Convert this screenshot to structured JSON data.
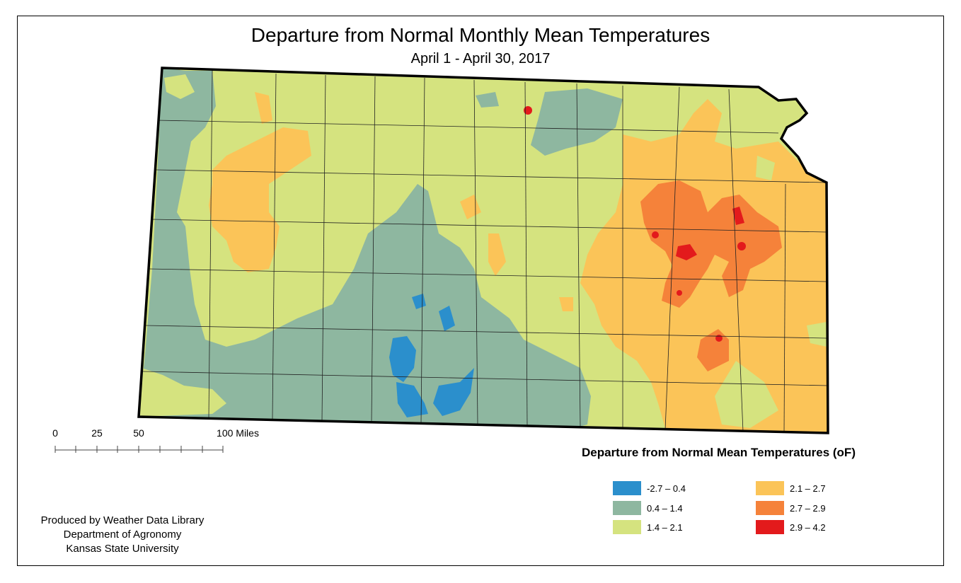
{
  "title": "Departure from Normal Monthly Mean Temperatures",
  "subtitle": "April 1 - April 30, 2017",
  "scale_bar": {
    "labels": [
      "0",
      "25",
      "50",
      "100 Miles"
    ]
  },
  "legend": {
    "title": "Departure from Normal Mean Temperatures (oF)",
    "items": [
      {
        "label": "-2.7 – 0.4",
        "color": "#2b8fcc"
      },
      {
        "label": "0.4 – 1.4",
        "color": "#8eb7a0"
      },
      {
        "label": "1.4 – 2.1",
        "color": "#d5e37f"
      },
      {
        "label": "2.1 – 2.7",
        "color": "#fbc458"
      },
      {
        "label": "2.7 – 2.9",
        "color": "#f5823a"
      },
      {
        "label": "2.9 – 4.2",
        "color": "#e31a1c"
      }
    ]
  },
  "credits": {
    "line1": "Produced by Weather Data Library",
    "line2": "Department of Agronomy",
    "line3": "Kansas State University"
  }
}
